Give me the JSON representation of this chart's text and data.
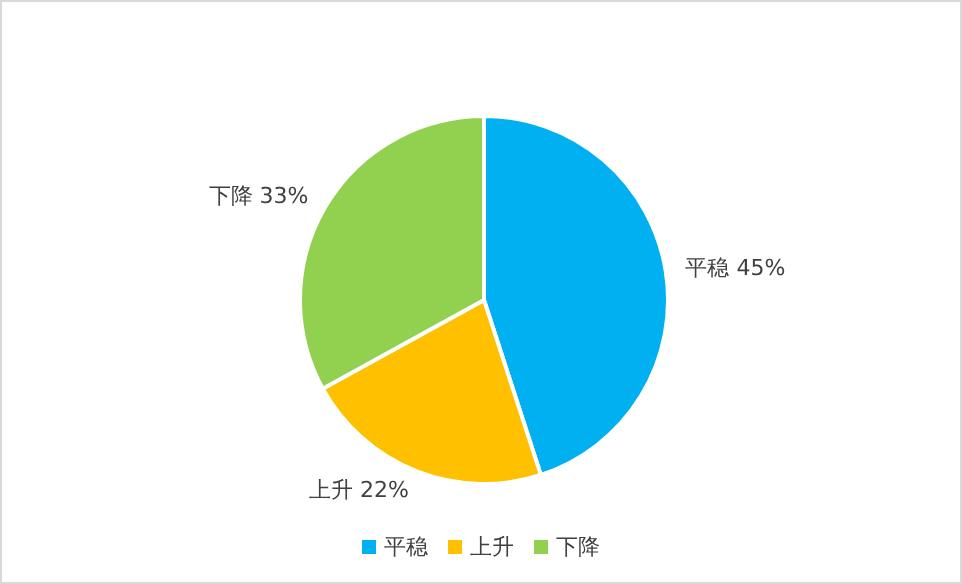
{
  "chart_data": {
    "type": "pie",
    "categories": [
      "平稳",
      "上升",
      "下降"
    ],
    "values": [
      45,
      22,
      33
    ],
    "value_labels": [
      "45%",
      "22%",
      "33%"
    ],
    "colors": [
      "#00b0f0",
      "#ffc000",
      "#92d050"
    ],
    "legend": "bottom"
  }
}
